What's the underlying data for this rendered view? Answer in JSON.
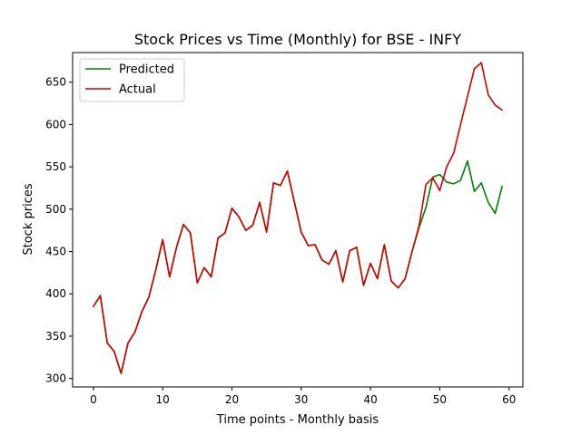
{
  "chart_data": {
    "type": "line",
    "title": "Stock Prices vs Time (Monthly) for BSE - INFY",
    "xlabel": "Time points - Monthly basis",
    "ylabel": "Stock prices",
    "xlim": [
      -3,
      62
    ],
    "ylim": [
      290,
      685
    ],
    "xticks": [
      0,
      10,
      20,
      30,
      40,
      50,
      60
    ],
    "yticks": [
      300,
      350,
      400,
      450,
      500,
      550,
      600,
      650
    ],
    "grid": false,
    "legend": "top-left",
    "series": [
      {
        "name": "Predicted",
        "color": "#008000",
        "x": [
          0,
          1,
          2,
          3,
          4,
          5,
          6,
          7,
          8,
          9,
          10,
          11,
          12,
          13,
          14,
          15,
          16,
          17,
          18,
          19,
          20,
          21,
          22,
          23,
          24,
          25,
          26,
          27,
          28,
          29,
          30,
          31,
          32,
          33,
          34,
          35,
          36,
          37,
          38,
          39,
          40,
          41,
          42,
          43,
          44,
          45,
          46,
          47,
          48,
          49,
          50,
          51,
          52,
          53,
          54,
          55,
          56,
          57,
          58,
          59
        ],
        "values": [
          385,
          398,
          342,
          332,
          306,
          342,
          355,
          379,
          396,
          428,
          464,
          420,
          455,
          482,
          472,
          413,
          431,
          420,
          466,
          472,
          501,
          491,
          475,
          481,
          508,
          473,
          531,
          528,
          545,
          509,
          473,
          457,
          458,
          440,
          435,
          451,
          414,
          451,
          455,
          410,
          436,
          418,
          458,
          415,
          407,
          418,
          450,
          478,
          502,
          538,
          541,
          532,
          530,
          534,
          557,
          521,
          531,
          508,
          495,
          527
        ]
      },
      {
        "name": "Actual",
        "color": "#d40000",
        "x": [
          0,
          1,
          2,
          3,
          4,
          5,
          6,
          7,
          8,
          9,
          10,
          11,
          12,
          13,
          14,
          15,
          16,
          17,
          18,
          19,
          20,
          21,
          22,
          23,
          24,
          25,
          26,
          27,
          28,
          29,
          30,
          31,
          32,
          33,
          34,
          35,
          36,
          37,
          38,
          39,
          40,
          41,
          42,
          43,
          44,
          45,
          46,
          47,
          48,
          49,
          50,
          51,
          52,
          53,
          54,
          55,
          56,
          57,
          58,
          59
        ],
        "values": [
          385,
          398,
          342,
          332,
          306,
          342,
          355,
          379,
          396,
          428,
          464,
          420,
          455,
          482,
          472,
          413,
          431,
          420,
          466,
          472,
          501,
          491,
          475,
          481,
          508,
          473,
          531,
          528,
          545,
          509,
          473,
          457,
          458,
          440,
          435,
          451,
          414,
          451,
          455,
          410,
          436,
          418,
          458,
          415,
          407,
          418,
          450,
          480,
          529,
          537,
          522,
          550,
          566,
          600,
          633,
          666,
          673,
          635,
          623,
          617
        ]
      }
    ]
  }
}
